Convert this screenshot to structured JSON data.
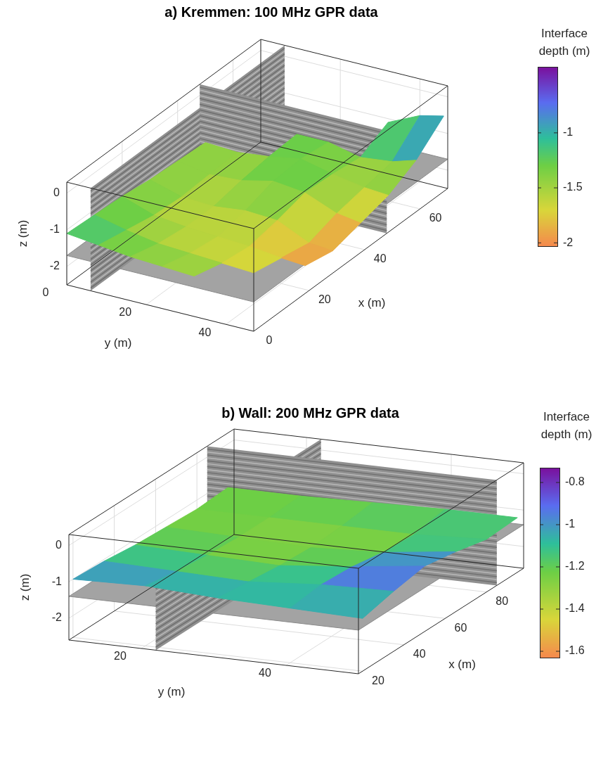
{
  "chart_data": [
    {
      "type": "surface3d",
      "title": "a) Kremmen: 100 MHz GPR data",
      "xlabel": "x (m)",
      "ylabel": "y (m)",
      "zlabel": "z (m)",
      "xlim": [
        0,
        70
      ],
      "ylim": [
        0,
        47
      ],
      "zlim": [
        -2.5,
        0.3
      ],
      "xticks": [
        0,
        20,
        40,
        60
      ],
      "yticks": [
        0,
        20,
        40
      ],
      "zticks": [
        -2,
        -1,
        0
      ],
      "grid": true,
      "slices": {
        "x": [
          48
        ],
        "y": [
          6
        ],
        "z": [
          -1.7
        ]
      },
      "x": [
        0,
        10,
        20,
        30,
        40,
        50,
        60,
        70
      ],
      "y": [
        0,
        8,
        16,
        24,
        32,
        40,
        46
      ],
      "values": [
        [
          -1.1,
          -1.15,
          -1.2,
          -1.3,
          -1.35,
          -1.4,
          null,
          null
        ],
        [
          -1.2,
          -1.35,
          -1.5,
          -1.55,
          -1.5,
          -1.45,
          null,
          null
        ],
        [
          -1.3,
          -1.5,
          -1.6,
          -1.6,
          -1.45,
          -1.35,
          -1.3,
          null
        ],
        [
          -1.35,
          -1.55,
          -1.65,
          -1.5,
          -1.25,
          -1.2,
          -1.3,
          null
        ],
        [
          -1.4,
          -1.6,
          -1.7,
          -1.55,
          -1.35,
          -1.4,
          -1.5,
          -1.1
        ],
        [
          null,
          -1.65,
          -1.8,
          -1.95,
          -1.7,
          -1.55,
          -1.4,
          -0.7
        ],
        [
          null,
          null,
          -1.85,
          -2.0,
          -1.8,
          -1.6,
          -1.2,
          -0.55
        ]
      ],
      "colorbar": {
        "label": "Interface depth (m)",
        "lim": [
          -2.03,
          -0.4
        ],
        "ticks": [
          -2,
          -1.5,
          -1
        ]
      }
    },
    {
      "type": "surface3d",
      "title": "b) Wall: 200 MHz GPR data",
      "xlabel": "x (m)",
      "ylabel": "y (m)",
      "zlabel": "z (m)",
      "xlim": [
        18,
        98
      ],
      "ylim": [
        10,
        50
      ],
      "zlim": [
        -2.6,
        0.3
      ],
      "xticks": [
        20,
        40,
        60,
        80
      ],
      "yticks": [
        20,
        40
      ],
      "zticks": [
        -2,
        -1,
        0
      ],
      "grid": true,
      "slices": {
        "x": [
          85
        ],
        "y": [
          22
        ],
        "z": [
          -1.4
        ]
      },
      "x": [
        20,
        35,
        50,
        65,
        80,
        95
      ],
      "y": [
        10,
        20,
        30,
        40,
        50
      ],
      "values": [
        [
          -1.0,
          -1.05,
          -1.15,
          -1.2,
          -1.25,
          -1.2
        ],
        [
          -0.95,
          -1.1,
          -1.2,
          -1.25,
          -1.25,
          -1.2
        ],
        [
          -1.05,
          -1.15,
          -1.25,
          -1.3,
          -1.25,
          -1.15
        ],
        [
          -1.1,
          -1.0,
          -1.05,
          -1.2,
          -1.25,
          -1.1
        ],
        [
          -1.15,
          -0.95,
          -0.8,
          -0.95,
          -1.15,
          -1.1
        ]
      ],
      "colorbar": {
        "label": "Interface depth (m)",
        "lim": [
          -1.63,
          -0.73
        ],
        "ticks": [
          -1.6,
          -1.4,
          -1.2,
          -1,
          -0.8
        ]
      }
    }
  ]
}
